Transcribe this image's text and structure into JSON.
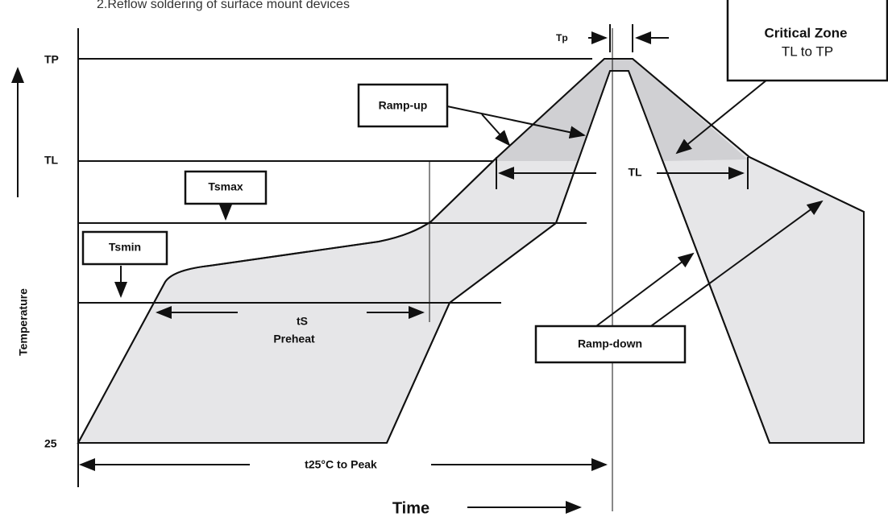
{
  "header": {
    "title": "2.Reflow soldering of surface mount devices"
  },
  "axes": {
    "y_label": "Temperature",
    "x_label": "Time",
    "y_levels": {
      "tp": "TP",
      "tl": "TL",
      "base": "25"
    }
  },
  "labels": {
    "tp_width": "Tp",
    "critical_zone": "Critical Zone",
    "critical_range": "TL to TP",
    "ramp_up": "Ramp-up",
    "tsmax": "Tsmax",
    "tsmin": "Tsmin",
    "ts": "tS",
    "preheat": "Preheat",
    "tl_time": "TL",
    "ramp_down": "Ramp-down",
    "t25_to_peak": "t25°C to Peak"
  }
}
